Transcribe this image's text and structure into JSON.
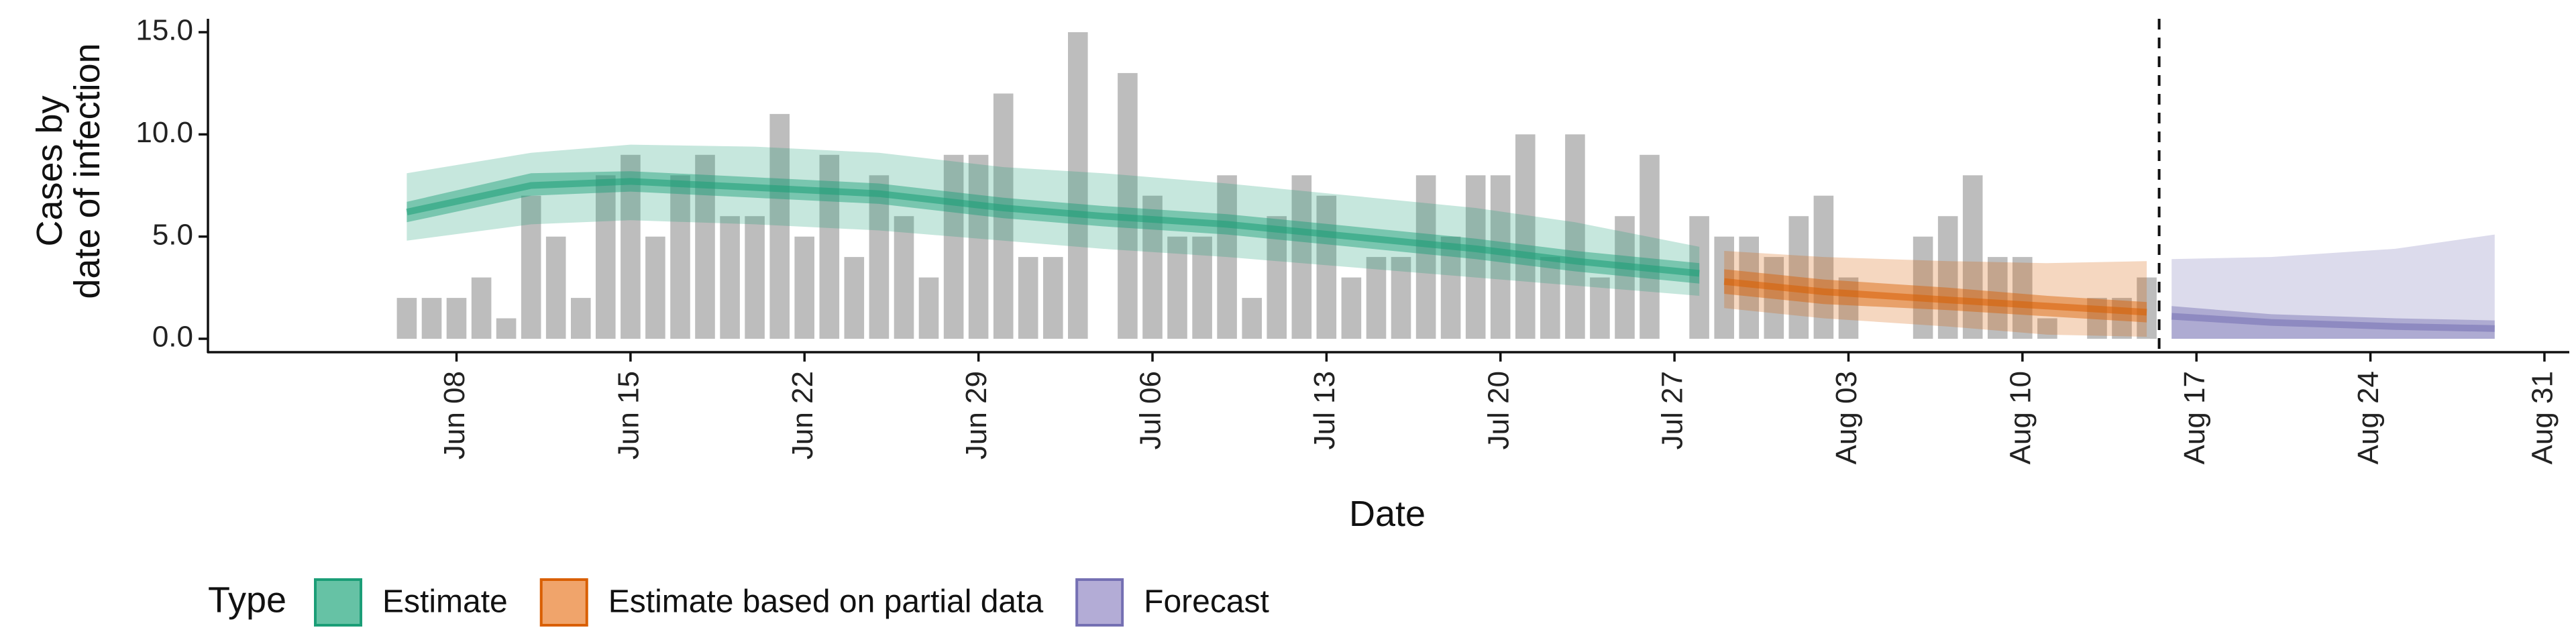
{
  "chart_data": {
    "type": "bar",
    "title": "",
    "xlabel": "Date",
    "ylabel_lines": [
      "Cases by",
      "date of infection"
    ],
    "ylim": [
      0,
      15.5
    ],
    "y_ticks": [
      {
        "value": 0,
        "label": "0.0"
      },
      {
        "value": 5,
        "label": "5.0"
      },
      {
        "value": 10,
        "label": "10.0"
      },
      {
        "value": 15,
        "label": "15.0"
      }
    ],
    "x_range": [
      "2020-05-29",
      "2020-09-01"
    ],
    "x_ticks": [
      {
        "date": "2020-06-08",
        "label": "Jun 08"
      },
      {
        "date": "2020-06-15",
        "label": "Jun 15"
      },
      {
        "date": "2020-06-22",
        "label": "Jun 22"
      },
      {
        "date": "2020-06-29",
        "label": "Jun 29"
      },
      {
        "date": "2020-07-06",
        "label": "Jul 06"
      },
      {
        "date": "2020-07-13",
        "label": "Jul 13"
      },
      {
        "date": "2020-07-20",
        "label": "Jul 20"
      },
      {
        "date": "2020-07-27",
        "label": "Jul 27"
      },
      {
        "date": "2020-08-03",
        "label": "Aug 03"
      },
      {
        "date": "2020-08-10",
        "label": "Aug 10"
      },
      {
        "date": "2020-08-17",
        "label": "Aug 17"
      },
      {
        "date": "2020-08-24",
        "label": "Aug 24"
      },
      {
        "date": "2020-08-31",
        "label": "Aug 31"
      }
    ],
    "forecast_boundary": "2020-08-15",
    "legend": {
      "title": "Type",
      "position": "bottom",
      "items": [
        {
          "label": "Estimate",
          "fill": "#66c2a5",
          "stroke": "#1b9e77"
        },
        {
          "label": "Estimate based on partial data",
          "fill": "#f0a46b",
          "stroke": "#d95f02"
        },
        {
          "label": "Forecast",
          "fill": "#b3acd6",
          "stroke": "#7570b3"
        }
      ]
    },
    "colors": {
      "bars": "#bdbdbd",
      "Estimate": "#1b9e77",
      "Estimate based on partial data": "#d95f02",
      "Forecast": "#7570b3"
    },
    "reported_cases": [
      {
        "date": "2020-06-06",
        "value": 2
      },
      {
        "date": "2020-06-07",
        "value": 2
      },
      {
        "date": "2020-06-08",
        "value": 2
      },
      {
        "date": "2020-06-09",
        "value": 3
      },
      {
        "date": "2020-06-10",
        "value": 1
      },
      {
        "date": "2020-06-11",
        "value": 7
      },
      {
        "date": "2020-06-12",
        "value": 5
      },
      {
        "date": "2020-06-13",
        "value": 2
      },
      {
        "date": "2020-06-14",
        "value": 8
      },
      {
        "date": "2020-06-15",
        "value": 9
      },
      {
        "date": "2020-06-16",
        "value": 5
      },
      {
        "date": "2020-06-17",
        "value": 8
      },
      {
        "date": "2020-06-18",
        "value": 9
      },
      {
        "date": "2020-06-19",
        "value": 6
      },
      {
        "date": "2020-06-20",
        "value": 6
      },
      {
        "date": "2020-06-21",
        "value": 11
      },
      {
        "date": "2020-06-22",
        "value": 5
      },
      {
        "date": "2020-06-23",
        "value": 9
      },
      {
        "date": "2020-06-24",
        "value": 4
      },
      {
        "date": "2020-06-25",
        "value": 8
      },
      {
        "date": "2020-06-26",
        "value": 6
      },
      {
        "date": "2020-06-27",
        "value": 3
      },
      {
        "date": "2020-06-28",
        "value": 9
      },
      {
        "date": "2020-06-29",
        "value": 9
      },
      {
        "date": "2020-06-30",
        "value": 12
      },
      {
        "date": "2020-07-01",
        "value": 4
      },
      {
        "date": "2020-07-02",
        "value": 4
      },
      {
        "date": "2020-07-03",
        "value": 15
      },
      {
        "date": "2020-07-04",
        "value": 0
      },
      {
        "date": "2020-07-05",
        "value": 13
      },
      {
        "date": "2020-07-06",
        "value": 7
      },
      {
        "date": "2020-07-07",
        "value": 5
      },
      {
        "date": "2020-07-08",
        "value": 5
      },
      {
        "date": "2020-07-09",
        "value": 8
      },
      {
        "date": "2020-07-10",
        "value": 2
      },
      {
        "date": "2020-07-11",
        "value": 6
      },
      {
        "date": "2020-07-12",
        "value": 8
      },
      {
        "date": "2020-07-13",
        "value": 7
      },
      {
        "date": "2020-07-14",
        "value": 3
      },
      {
        "date": "2020-07-15",
        "value": 4
      },
      {
        "date": "2020-07-16",
        "value": 4
      },
      {
        "date": "2020-07-17",
        "value": 8
      },
      {
        "date": "2020-07-18",
        "value": 5
      },
      {
        "date": "2020-07-19",
        "value": 8
      },
      {
        "date": "2020-07-20",
        "value": 8
      },
      {
        "date": "2020-07-21",
        "value": 10
      },
      {
        "date": "2020-07-22",
        "value": 4
      },
      {
        "date": "2020-07-23",
        "value": 10
      },
      {
        "date": "2020-07-24",
        "value": 3
      },
      {
        "date": "2020-07-25",
        "value": 6
      },
      {
        "date": "2020-07-26",
        "value": 9
      },
      {
        "date": "2020-07-27",
        "value": 0
      },
      {
        "date": "2020-07-28",
        "value": 6
      },
      {
        "date": "2020-07-29",
        "value": 5
      },
      {
        "date": "2020-07-30",
        "value": 5
      },
      {
        "date": "2020-07-31",
        "value": 4
      },
      {
        "date": "2020-08-01",
        "value": 6
      },
      {
        "date": "2020-08-02",
        "value": 7
      },
      {
        "date": "2020-08-03",
        "value": 3
      },
      {
        "date": "2020-08-04",
        "value": 0
      },
      {
        "date": "2020-08-05",
        "value": 0
      },
      {
        "date": "2020-08-06",
        "value": 5
      },
      {
        "date": "2020-08-07",
        "value": 6
      },
      {
        "date": "2020-08-08",
        "value": 8
      },
      {
        "date": "2020-08-09",
        "value": 4
      },
      {
        "date": "2020-08-10",
        "value": 4
      },
      {
        "date": "2020-08-11",
        "value": 1
      },
      {
        "date": "2020-08-12",
        "value": 0
      },
      {
        "date": "2020-08-13",
        "value": 2
      },
      {
        "date": "2020-08-14",
        "value": 2
      },
      {
        "date": "2020-08-15",
        "value": 3
      }
    ],
    "series": [
      {
        "name": "Estimate",
        "start": "2020-06-06",
        "end": "2020-07-28",
        "median": [
          6.2,
          7.5,
          7.7,
          7.4,
          7.1,
          6.4,
          6.0,
          5.6,
          5.0,
          4.4,
          3.8,
          3.2
        ],
        "inner": [
          [
            5.7,
            6.7
          ],
          [
            7.0,
            8.1
          ],
          [
            7.2,
            8.2
          ],
          [
            6.9,
            7.9
          ],
          [
            6.6,
            7.6
          ],
          [
            5.9,
            6.9
          ],
          [
            5.5,
            6.5
          ],
          [
            5.1,
            6.1
          ],
          [
            4.5,
            5.5
          ],
          [
            3.9,
            4.9
          ],
          [
            3.3,
            4.3
          ],
          [
            2.7,
            3.7
          ]
        ],
        "outer": [
          [
            4.8,
            8.1
          ],
          [
            5.6,
            9.1
          ],
          [
            5.8,
            9.5
          ],
          [
            5.6,
            9.4
          ],
          [
            5.3,
            9.1
          ],
          [
            4.8,
            8.4
          ],
          [
            4.4,
            8.1
          ],
          [
            4.0,
            7.6
          ],
          [
            3.5,
            7.0
          ],
          [
            3.0,
            6.4
          ],
          [
            2.6,
            5.7
          ],
          [
            2.1,
            4.5
          ]
        ]
      },
      {
        "name": "Estimate based on partial data",
        "start": "2020-07-29",
        "end": "2020-08-15",
        "median": [
          2.8,
          2.3,
          1.9,
          1.6,
          1.3
        ],
        "inner": [
          [
            2.2,
            3.4
          ],
          [
            1.7,
            2.9
          ],
          [
            1.4,
            2.5
          ],
          [
            1.1,
            2.1
          ],
          [
            0.8,
            1.8
          ]
        ],
        "outer": [
          [
            1.5,
            4.3
          ],
          [
            1.0,
            4.0
          ],
          [
            0.6,
            3.8
          ],
          [
            0.2,
            3.7
          ],
          [
            0.1,
            3.8
          ]
        ]
      },
      {
        "name": "Forecast",
        "start": "2020-08-16",
        "end": "2020-08-29",
        "median": [
          1.1,
          0.8,
          0.6,
          0.5
        ],
        "inner": [
          [
            0.0,
            1.6
          ],
          [
            0.0,
            1.2
          ],
          [
            0.0,
            1.0
          ],
          [
            0.0,
            0.9
          ]
        ],
        "outer": [
          [
            0.0,
            3.9
          ],
          [
            0.0,
            4.0
          ],
          [
            0.0,
            4.4
          ],
          [
            0.0,
            5.1
          ]
        ]
      }
    ]
  }
}
